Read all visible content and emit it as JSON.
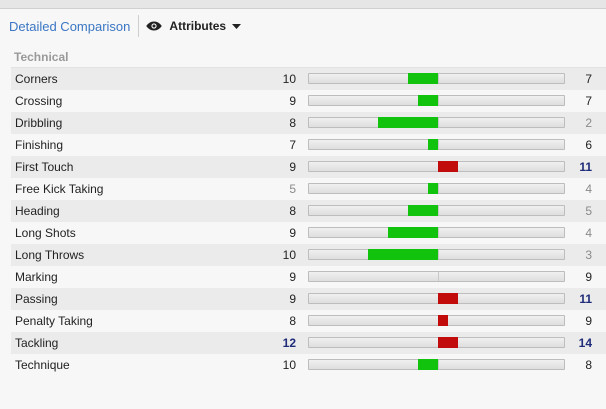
{
  "toolbar": {
    "tab_label": "Detailed Comparison",
    "dropdown_label": "Attributes"
  },
  "section": {
    "title": "Technical"
  },
  "colors": {
    "green": "#12c30d",
    "red": "#c20b0b",
    "link": "#3b76c4",
    "strong_value": "#1f2c7a"
  },
  "rows": [
    {
      "name": "Corners",
      "left": 10,
      "right": 7,
      "left_style": "norm",
      "right_style": "norm"
    },
    {
      "name": "Crossing",
      "left": 9,
      "right": 7,
      "left_style": "norm",
      "right_style": "norm"
    },
    {
      "name": "Dribbling",
      "left": 8,
      "right": 2,
      "left_style": "norm",
      "right_style": "dim"
    },
    {
      "name": "Finishing",
      "left": 7,
      "right": 6,
      "left_style": "norm",
      "right_style": "norm"
    },
    {
      "name": "First Touch",
      "left": 9,
      "right": 11,
      "left_style": "norm",
      "right_style": "strong"
    },
    {
      "name": "Free Kick Taking",
      "left": 5,
      "right": 4,
      "left_style": "dim",
      "right_style": "dim"
    },
    {
      "name": "Heading",
      "left": 8,
      "right": 5,
      "left_style": "norm",
      "right_style": "dim"
    },
    {
      "name": "Long Shots",
      "left": 9,
      "right": 4,
      "left_style": "norm",
      "right_style": "dim"
    },
    {
      "name": "Long Throws",
      "left": 10,
      "right": 3,
      "left_style": "norm",
      "right_style": "dim"
    },
    {
      "name": "Marking",
      "left": 9,
      "right": 9,
      "left_style": "norm",
      "right_style": "norm"
    },
    {
      "name": "Passing",
      "left": 9,
      "right": 11,
      "left_style": "norm",
      "right_style": "strong"
    },
    {
      "name": "Penalty Taking",
      "left": 8,
      "right": 9,
      "left_style": "norm",
      "right_style": "norm"
    },
    {
      "name": "Tackling",
      "left": 12,
      "right": 14,
      "left_style": "strong",
      "right_style": "strong"
    },
    {
      "name": "Technique",
      "left": 10,
      "right": 8,
      "left_style": "norm",
      "right_style": "norm"
    }
  ]
}
